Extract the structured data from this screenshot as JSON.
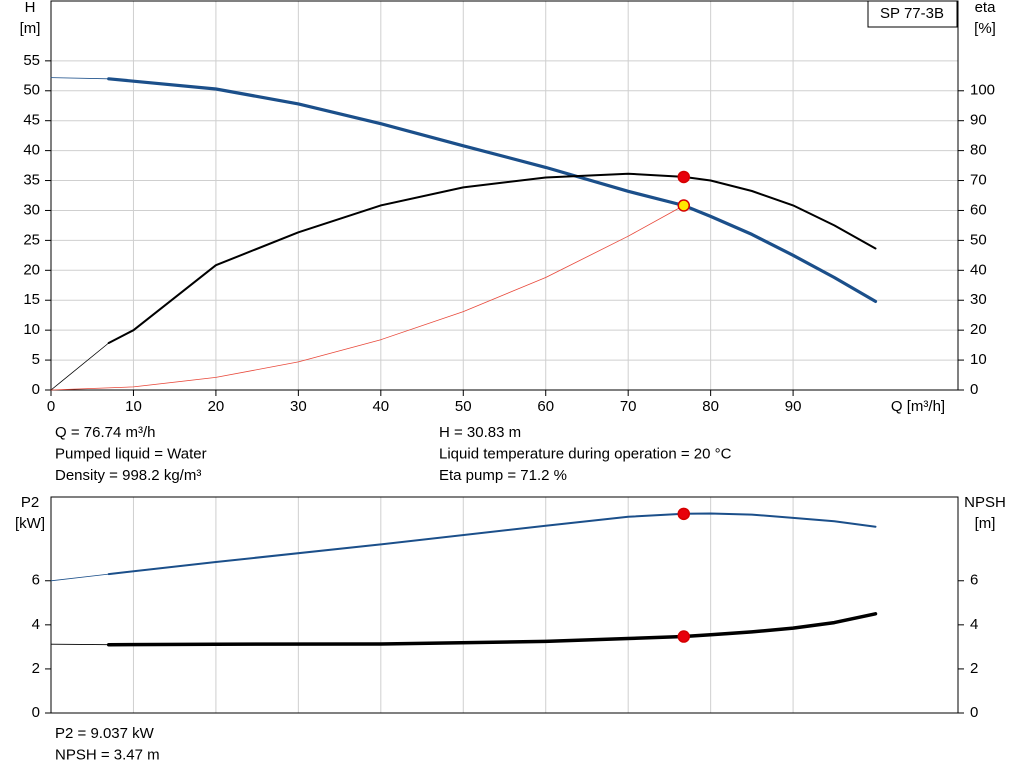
{
  "chart_data": [
    {
      "type": "line",
      "title": "SP 77-3B",
      "xlabel": "Q [m³/h]",
      "ylabel": "H",
      "yunit": "[m]",
      "y2label": "eta",
      "y2unit": "[%]",
      "xlim": [
        0,
        110
      ],
      "xticks": [
        0,
        10,
        20,
        30,
        40,
        50,
        60,
        70,
        80,
        90
      ],
      "ylim": [
        0,
        65
      ],
      "yticks": [
        0,
        5,
        10,
        15,
        20,
        25,
        30,
        35,
        40,
        45,
        50,
        55
      ],
      "y2lim": [
        0,
        130
      ],
      "y2ticks": [
        0,
        10,
        20,
        30,
        40,
        50,
        60,
        70,
        80,
        90,
        100
      ],
      "grid": true,
      "xtick_labels": true,
      "series": [
        {
          "color": "#1b4f8a",
          "line_width": 3.2,
          "lead_in": true,
          "x": [
            0,
            7,
            10,
            20,
            30,
            40,
            50,
            60,
            70,
            76.74,
            80,
            85,
            90,
            95,
            100
          ],
          "values": [
            52.2,
            52,
            51.6,
            50.3,
            47.8,
            44.5,
            40.8,
            37.2,
            33.2,
            30.83,
            29,
            26,
            22.5,
            18.8,
            14.8
          ]
        },
        {
          "color": "#000000",
          "line_width": 2,
          "lead_in": true,
          "axis": "y2",
          "x": [
            0,
            7,
            10,
            20,
            30,
            40,
            50,
            60,
            70,
            76.74,
            80,
            85,
            90,
            95,
            100
          ],
          "values": [
            0,
            15.7,
            20,
            41.7,
            52.7,
            61.7,
            67.7,
            71,
            72.3,
            71.2,
            70,
            66.5,
            61.7,
            55,
            47.3
          ]
        },
        {
          "color": "#e8483a",
          "line_width": 0.8,
          "x": [
            0,
            10,
            20,
            30,
            40,
            50,
            60,
            70,
            76.74
          ],
          "values": [
            0,
            0.52,
            2.1,
            4.7,
            8.4,
            13.1,
            18.8,
            25.7,
            30.83
          ]
        }
      ],
      "points": [
        {
          "x": 76.74,
          "y": 71.2,
          "axis": "y2",
          "color": "#e8000b"
        },
        {
          "x": 76.74,
          "y": 30.83,
          "color": "#ffe600"
        }
      ],
      "annotations": [
        "Q = 76.74 m³/h",
        "Pumped liquid = Water",
        "Density = 998.2 kg/m³",
        "H = 30.83 m",
        "Liquid temperature during operation = 20 °C",
        "Eta pump = 71.2 %"
      ]
    },
    {
      "type": "line",
      "ylabel": "P2",
      "yunit": "[kW]",
      "y2label": "NPSH",
      "y2unit": "[m]",
      "xlim": [
        0,
        110
      ],
      "xticks": [
        0,
        10,
        20,
        30,
        40,
        50,
        60,
        70,
        80,
        90
      ],
      "ylim": [
        0,
        9.8
      ],
      "yticks": [
        0,
        2,
        4,
        6
      ],
      "y2lim": [
        0,
        9.8
      ],
      "y2ticks": [
        0,
        2,
        4,
        6
      ],
      "grid": "x",
      "xtick_labels": false,
      "series": [
        {
          "color": "#1b4f8a",
          "line_width": 2,
          "lead_in": true,
          "x": [
            0,
            7,
            20,
            40,
            60,
            70,
            76.74,
            80,
            85,
            90,
            95,
            100
          ],
          "values": [
            6.0,
            6.3,
            6.85,
            7.65,
            8.5,
            8.9,
            9.037,
            9.05,
            9.0,
            8.85,
            8.7,
            8.45
          ]
        },
        {
          "color": "#000000",
          "line_width": 3.5,
          "lead_in": true,
          "axis": "y2",
          "x": [
            0,
            7,
            20,
            40,
            60,
            70,
            76.74,
            80,
            85,
            90,
            95,
            100
          ],
          "values": [
            3.12,
            3.1,
            3.12,
            3.13,
            3.25,
            3.38,
            3.47,
            3.55,
            3.68,
            3.85,
            4.1,
            4.5
          ]
        }
      ],
      "points": [
        {
          "x": 76.74,
          "y": 9.037,
          "color": "#e8000b"
        },
        {
          "x": 76.74,
          "y": 3.47,
          "axis": "y2",
          "color": "#e8000b"
        }
      ],
      "annotations": [
        "P2 = 9.037 kW",
        "NPSH = 3.47 m"
      ]
    }
  ]
}
